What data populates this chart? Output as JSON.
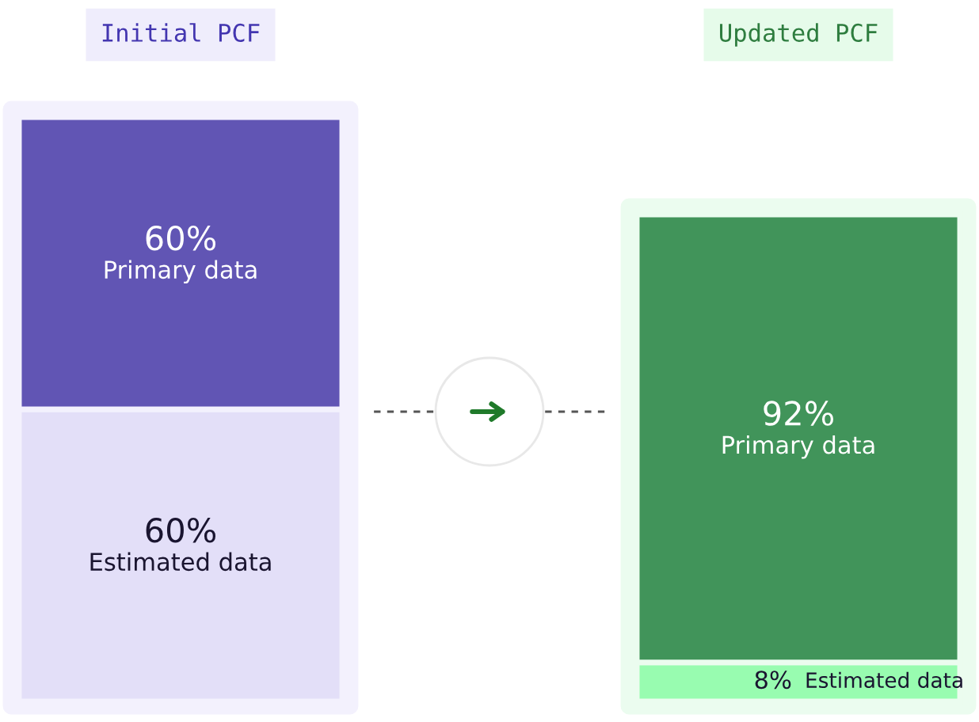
{
  "chart_data": {
    "type": "bar",
    "stacked": true,
    "categories": [
      "Initial PCF",
      "Updated PCF"
    ],
    "series": [
      {
        "name": "Estimated data",
        "colors": [
          "#e3dff8",
          "#98fcb0"
        ],
        "values": [
          60,
          8
        ],
        "value_labels": [
          "60%",
          "8%"
        ]
      },
      {
        "name": "Primary data",
        "colors": [
          "#6155b4",
          "#41945a"
        ],
        "values": [
          60,
          92
        ],
        "value_labels": [
          "60%",
          "92%"
        ]
      }
    ]
  }
}
